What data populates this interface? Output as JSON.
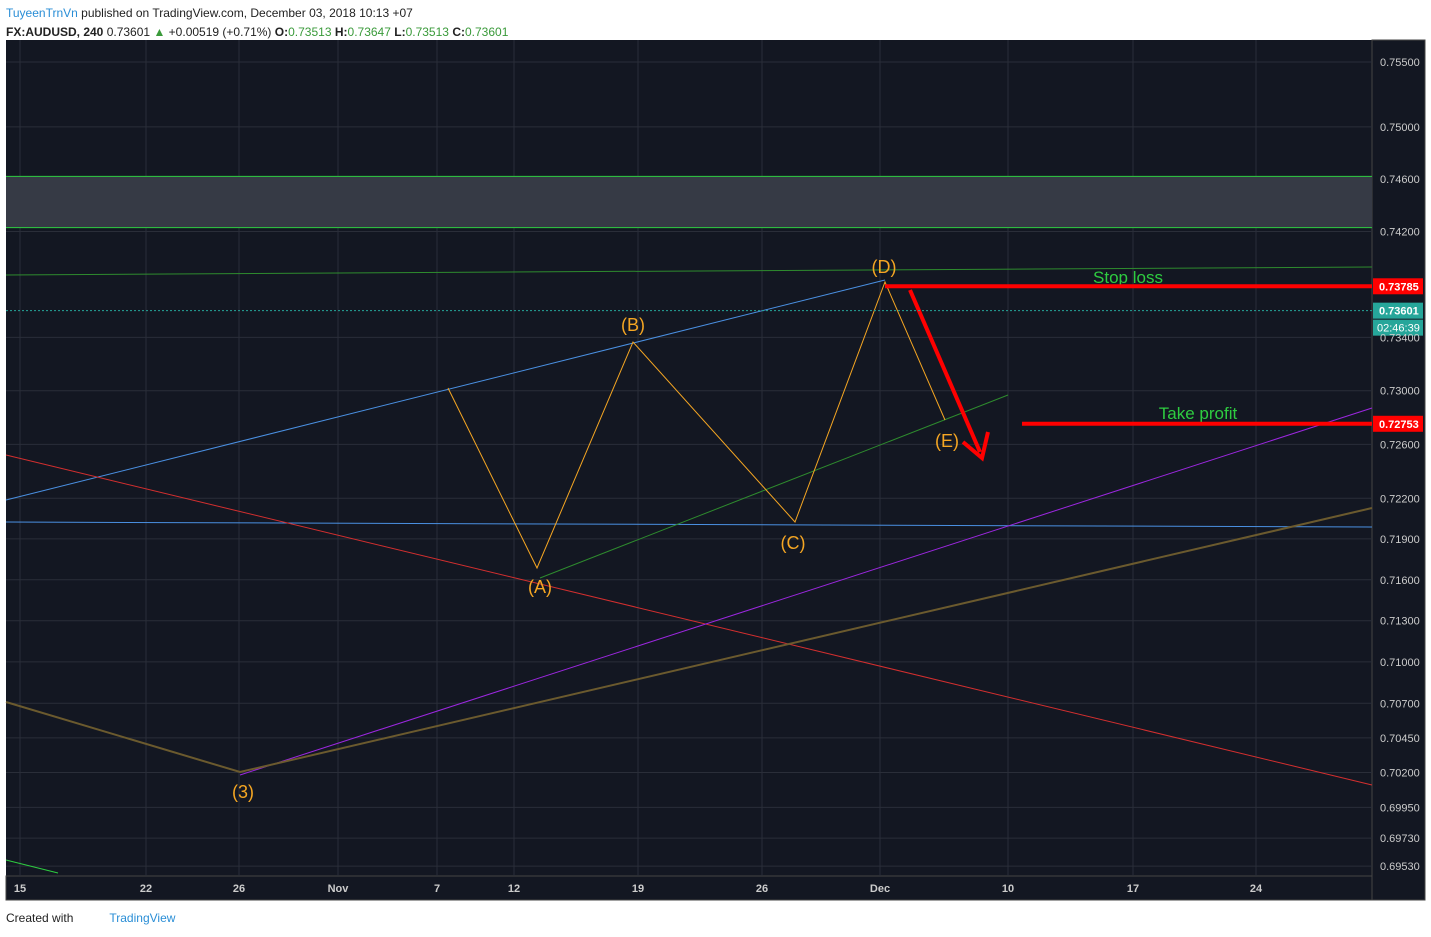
{
  "header": {
    "author": "TuyeenTrnVn",
    "published": "published on TradingView.com, December 03, 2018 10:13 +07",
    "symbol": "FX:AUDUSD, 240",
    "last": "0.73601",
    "change": "+0.00519 (+0.71%)",
    "ohlc": [
      {
        "label": "O:",
        "value": "0.73513"
      },
      {
        "label": "H:",
        "value": "0.73647"
      },
      {
        "label": "L:",
        "value": "0.73513"
      },
      {
        "label": "C:",
        "value": "0.73601"
      }
    ]
  },
  "price_axis": {
    "lim": [
      0.6946,
      0.7567
    ],
    "log": true,
    "ticks": [
      {
        "value": 0.755,
        "label": "0.75500"
      },
      {
        "value": 0.75,
        "label": "0.75000"
      },
      {
        "value": 0.746,
        "label": "0.74600"
      },
      {
        "value": 0.742,
        "label": "0.74200"
      },
      {
        "value": 0.734,
        "label": "0.73400"
      },
      {
        "value": 0.73,
        "label": "0.73000"
      },
      {
        "value": 0.726,
        "label": "0.72600"
      },
      {
        "value": 0.722,
        "label": "0.72200"
      },
      {
        "value": 0.719,
        "label": "0.71900"
      },
      {
        "value": 0.716,
        "label": "0.71600"
      },
      {
        "value": 0.713,
        "label": "0.71300"
      },
      {
        "value": 0.71,
        "label": "0.71000"
      },
      {
        "value": 0.707,
        "label": "0.70700"
      },
      {
        "value": 0.7045,
        "label": "0.70450"
      },
      {
        "value": 0.702,
        "label": "0.70200"
      },
      {
        "value": 0.6995,
        "label": "0.69950"
      },
      {
        "value": 0.6973,
        "label": "0.69730"
      },
      {
        "value": 0.6953,
        "label": "0.69530"
      }
    ]
  },
  "zone": [
    0.7462,
    0.7423
  ],
  "price_tags": [
    {
      "value": 0.73785,
      "label": "0.73785",
      "color": "#ff0000"
    },
    {
      "value": 0.73601,
      "label": "0.73601",
      "color": "#26a69a"
    },
    {
      "value": 0.72753,
      "label": "0.72753",
      "color": "#ff0000"
    }
  ],
  "timer": "02:46:39",
  "date_axis": [
    "15",
    "22",
    "26",
    "Nov",
    "7",
    "12",
    "19",
    "26",
    "Dec",
    "10",
    "17",
    "24"
  ],
  "waves": [
    "(3)",
    "(A)",
    "(B)",
    "(C)",
    "(D)",
    "(E)"
  ],
  "annotations": {
    "stop_loss": "Stop loss",
    "take_profit": "Take profit"
  },
  "footer": {
    "created": "Created with",
    "brand": "TradingView"
  }
}
